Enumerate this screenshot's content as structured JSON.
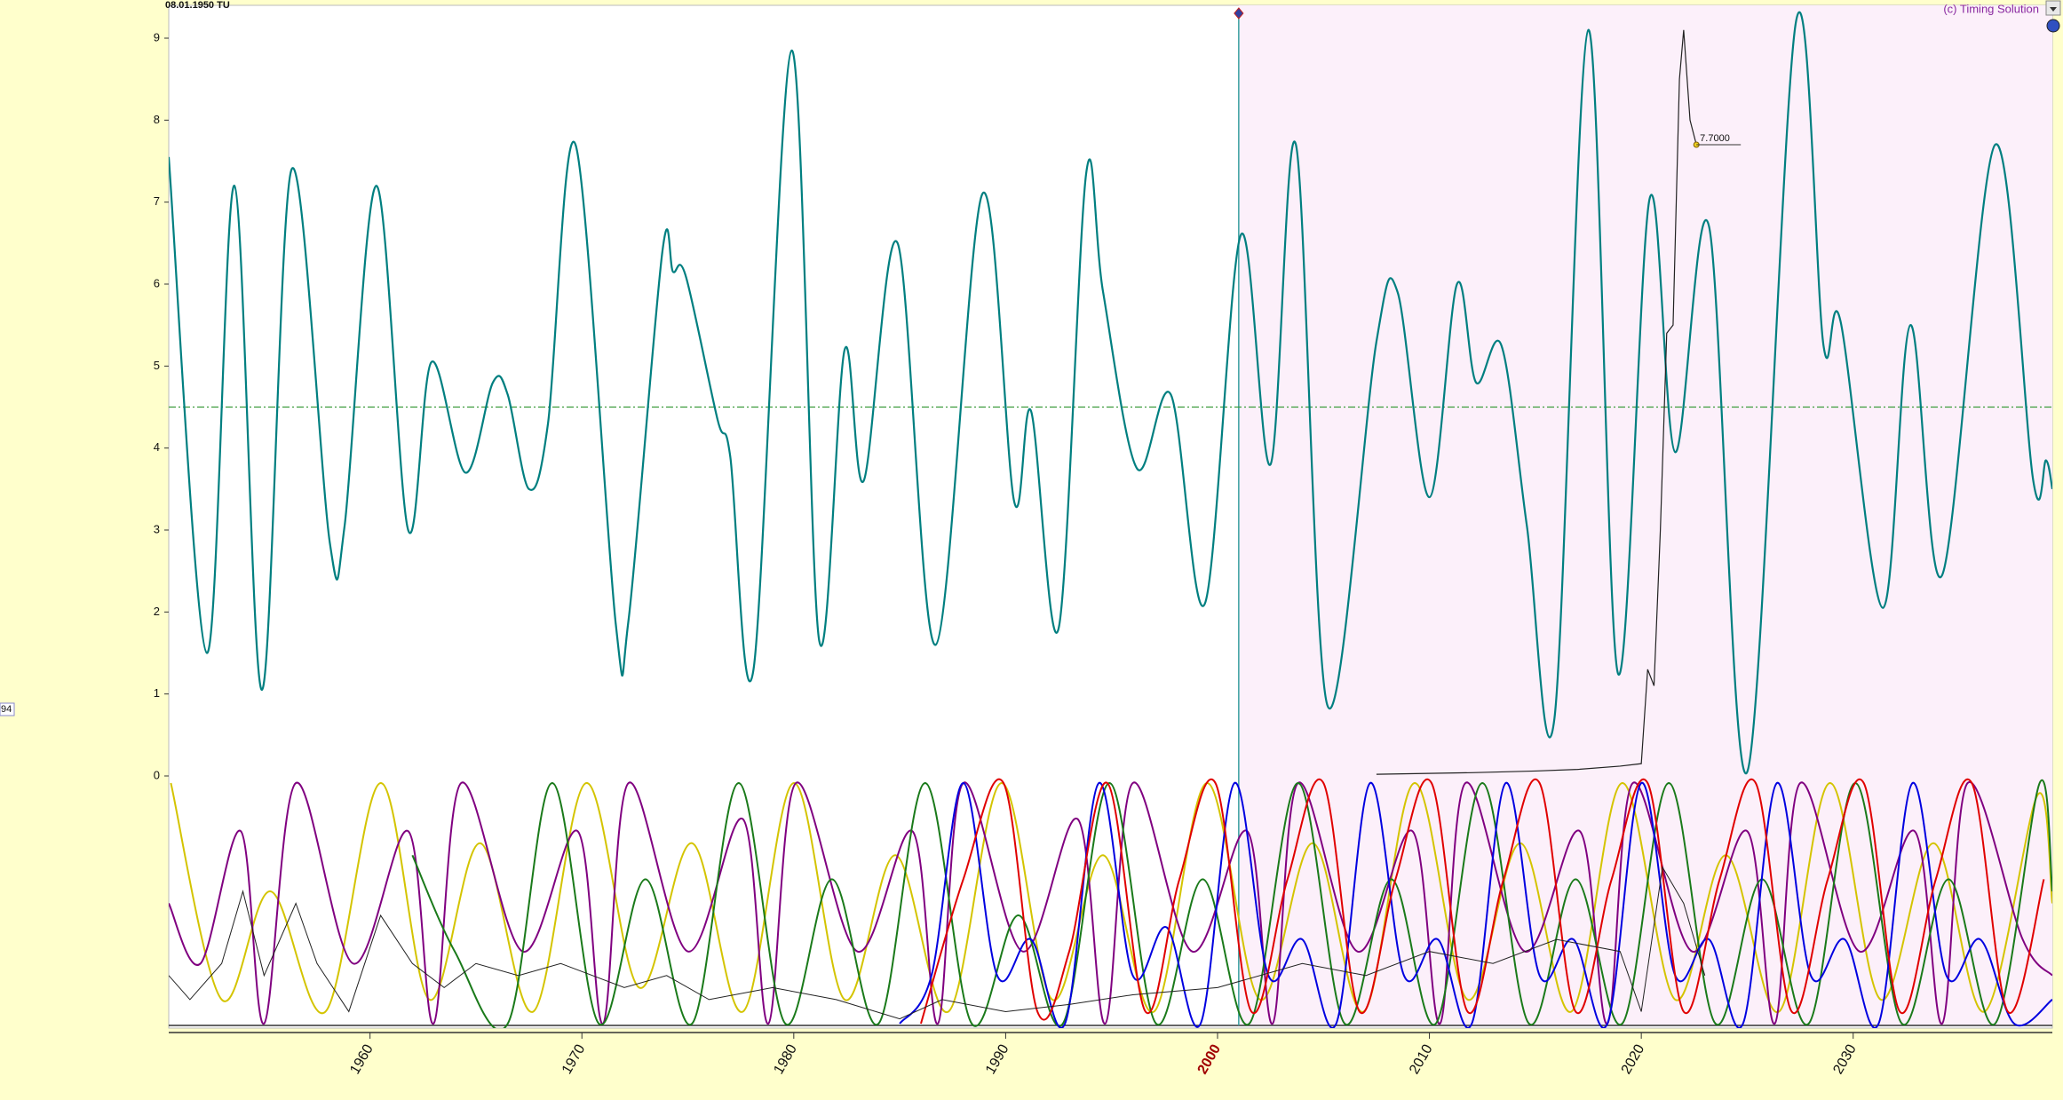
{
  "chart_data": [
    {
      "type": "line",
      "date_label": "08.01.1950 TU",
      "copyright": "(c) Timing Solution",
      "side_label": "94",
      "xlim": [
        1950.5,
        2039.4
      ],
      "ylim": [
        0,
        9
      ],
      "yticks": [
        0,
        1,
        2,
        3,
        4,
        5,
        6,
        7,
        8,
        9
      ],
      "ref_line": 4.5,
      "ref_color": "#3a9a3a",
      "cursor_x": 2001.0,
      "shade_color": "#fcf0fa",
      "series": [
        {
          "color": "#007f80",
          "smooth": true,
          "width": 2.2,
          "x": [
            1950.5,
            1952.3,
            1953.6,
            1954.9,
            1956.3,
            1958.1,
            1958.8,
            1960.3,
            1961.8,
            1962.9,
            1964.5,
            1965.8,
            1966.5,
            1967.5,
            1968.4,
            1969.7,
            1971.6,
            1972.2,
            1973.8,
            1974.3,
            1974.9,
            1976.4,
            1977.0,
            1978.1,
            1979.9,
            1981.2,
            1982.4,
            1983.3,
            1984.9,
            1986.7,
            1988.9,
            1990.4,
            1991.2,
            1992.5,
            1993.8,
            1994.6,
            1996.2,
            1997.8,
            1999.4,
            2001.1,
            2002.5,
            2003.7,
            2005.2,
            2007.5,
            2008.5,
            2010.0,
            2011.3,
            2012.2,
            2013.4,
            2014.6,
            2015.9,
            2017.5,
            2018.9,
            2020.4,
            2021.6,
            2023.2,
            2025.0,
            2027.3,
            2028.6,
            2029.4,
            2031.4,
            2032.7,
            2034.2,
            2036.7,
            2038.5,
            2039.1,
            2039.4
          ],
          "values": [
            7.55,
            1.5,
            7.2,
            1.05,
            7.4,
            2.85,
            3.05,
            7.2,
            3.0,
            5.05,
            3.7,
            4.8,
            4.65,
            3.5,
            4.3,
            7.7,
            1.85,
            1.9,
            6.4,
            6.15,
            6.1,
            4.35,
            3.9,
            1.3,
            8.85,
            1.65,
            5.2,
            3.6,
            6.5,
            1.6,
            7.1,
            3.35,
            4.45,
            1.8,
            7.35,
            5.9,
            3.75,
            4.65,
            2.1,
            6.6,
            3.8,
            7.7,
            0.85,
            5.3,
            5.9,
            3.4,
            6.0,
            4.8,
            5.25,
            3.05,
            0.7,
            9.1,
            1.25,
            7.05,
            3.95,
            6.7,
            0.05,
            9.2,
            5.25,
            5.55,
            2.05,
            5.5,
            2.45,
            7.7,
            3.6,
            3.85,
            3.5
          ]
        },
        {
          "color": "#222222",
          "smooth": false,
          "width": 1.2,
          "x": [
            2007.5,
            2012,
            2015,
            2017,
            2019,
            2020.0,
            2020.3,
            2020.6,
            2020.9,
            2021.2,
            2021.5,
            2021.8,
            2022.0,
            2022.3,
            2022.6
          ],
          "values": [
            0.02,
            0.04,
            0.06,
            0.08,
            0.12,
            0.15,
            1.3,
            1.1,
            3.0,
            5.4,
            5.5,
            8.5,
            9.1,
            8.0,
            7.7
          ]
        }
      ],
      "annotation": {
        "x": 2022.6,
        "value": 7.7,
        "label": "7.7000"
      }
    },
    {
      "type": "line",
      "xlim": [
        1950.5,
        2039.4
      ],
      "ylim": [
        0,
        1
      ],
      "xticks": [
        1960,
        1970,
        1980,
        1990,
        2000,
        2010,
        2020,
        2030
      ],
      "highlight_xtick": 2000,
      "highlight_color": "#a00000",
      "series": [
        {
          "color": "#d4c400",
          "smooth": true,
          "width": 2,
          "x": [
            1950.6,
            1953.0,
            1955.3,
            1957.9,
            1960.5,
            1962.8,
            1965.2,
            1967.7,
            1970.2,
            1972.7,
            1975.2,
            1977.6,
            1980.0,
            1982.4,
            1984.8,
            1987.3,
            1989.8,
            1992.2,
            1994.6,
            1997.0,
            1999.5,
            2002.0,
            2004.5,
            2006.9,
            2009.3,
            2011.8,
            2014.3,
            2016.7,
            2019.1,
            2021.6,
            2024.0,
            2026.5,
            2028.9,
            2031.3,
            2033.8,
            2036.2,
            2038.7,
            2039.4
          ],
          "values": [
            1,
            0.1,
            0.55,
            0.05,
            1,
            0.1,
            0.75,
            0.05,
            1,
            0.15,
            0.75,
            0.05,
            1,
            0.1,
            0.7,
            0.05,
            1,
            0.1,
            0.7,
            0.05,
            1,
            0.1,
            0.75,
            0.05,
            1,
            0.1,
            0.75,
            0.05,
            1,
            0.1,
            0.7,
            0.05,
            1,
            0.1,
            0.75,
            0.05,
            0.95,
            0.5
          ]
        },
        {
          "color": "#800080",
          "smooth": true,
          "width": 2,
          "x": [
            1950.5,
            1952.0,
            1953.9,
            1955.0,
            1956.5,
            1959.2,
            1961.8,
            1963.0,
            1964.3,
            1967.2,
            1969.8,
            1971.0,
            1972.2,
            1975.0,
            1977.6,
            1978.8,
            1980.1,
            1983.0,
            1985.6,
            1986.8,
            1988.0,
            1990.8,
            1993.4,
            1994.7,
            1996.0,
            1998.8,
            2001.4,
            2002.6,
            2003.8,
            2006.6,
            2009.2,
            2010.5,
            2011.7,
            2014.5,
            2017.1,
            2018.4,
            2019.6,
            2022.4,
            2025.0,
            2026.3,
            2027.5,
            2030.3,
            2032.9,
            2034.2,
            2035.4,
            2038.0,
            2039.4
          ],
          "values": [
            0.5,
            0.25,
            0.8,
            0.0,
            1,
            0.25,
            0.8,
            0.0,
            1,
            0.3,
            0.8,
            0.0,
            1,
            0.3,
            0.85,
            0.0,
            1,
            0.3,
            0.8,
            0.0,
            1,
            0.3,
            0.85,
            0.0,
            1,
            0.3,
            0.8,
            0.0,
            1,
            0.3,
            0.8,
            0.0,
            1,
            0.3,
            0.8,
            0.0,
            1,
            0.3,
            0.8,
            0.0,
            1,
            0.3,
            0.8,
            0.0,
            1,
            0.35,
            0.2
          ]
        },
        {
          "color": "#1a7a1a",
          "smooth": true,
          "width": 2,
          "x": [
            1962.0,
            1964.0,
            1966.5,
            1968.6,
            1970.8,
            1973.0,
            1975.2,
            1977.4,
            1979.6,
            1981.8,
            1984.0,
            1986.2,
            1988.4,
            1990.6,
            1992.7,
            1994.9,
            1997.1,
            1999.3,
            2001.5,
            2003.8,
            2006.0,
            2008.2,
            2010.3,
            2012.5,
            2014.7,
            2016.9,
            2019.1,
            2021.3,
            2023.5,
            2025.7,
            2027.9,
            2030.1,
            2032.3,
            2034.5,
            2036.7,
            2038.8,
            2039.4
          ],
          "values": [
            0.7,
            0.3,
            0.0,
            1,
            0.0,
            0.6,
            0.0,
            1,
            0.0,
            0.6,
            0.0,
            1,
            0.0,
            0.45,
            0.0,
            1,
            0.0,
            0.6,
            0.0,
            1,
            0.0,
            0.6,
            0.0,
            1,
            0.0,
            0.6,
            0.0,
            1,
            0.0,
            0.6,
            0.0,
            1,
            0.0,
            0.6,
            0.0,
            1,
            0.55
          ]
        },
        {
          "color": "#0000e0",
          "smooth": true,
          "width": 2,
          "x": [
            1985.0,
            1986.5,
            1988.0,
            1989.6,
            1991.2,
            1992.8,
            1994.4,
            1996.0,
            1997.6,
            1999.2,
            2000.8,
            2002.4,
            2004.0,
            2005.6,
            2007.2,
            2008.8,
            2010.4,
            2012.0,
            2013.6,
            2015.2,
            2016.8,
            2018.4,
            2020.0,
            2021.6,
            2023.2,
            2024.8,
            2026.4,
            2028.0,
            2029.6,
            2031.2,
            2032.8,
            2034.4,
            2036.0,
            2037.6,
            2039.4
          ],
          "values": [
            0.0,
            0.2,
            1,
            0.2,
            0.35,
            0.0,
            1,
            0.2,
            0.4,
            0.0,
            1,
            0.2,
            0.35,
            0.0,
            1,
            0.2,
            0.35,
            0.0,
            1,
            0.2,
            0.35,
            0.0,
            1,
            0.2,
            0.35,
            0.0,
            1,
            0.2,
            0.35,
            0.0,
            1,
            0.2,
            0.35,
            0.0,
            0.1
          ]
        },
        {
          "color": "#e00000",
          "smooth": true,
          "width": 2,
          "x": [
            1986.0,
            1988.0,
            1989.9,
            1991.5,
            1993.0,
            1994.8,
            1996.6,
            1998.2,
            1999.9,
            2001.6,
            2003.3,
            2005.0,
            2006.7,
            2008.4,
            2010.1,
            2011.8,
            2013.5,
            2015.2,
            2016.9,
            2018.6,
            2020.3,
            2022.0,
            2023.7,
            2025.4,
            2027.1,
            2028.8,
            2030.5,
            2032.2,
            2033.9,
            2035.6,
            2037.3,
            2039.0
          ],
          "values": [
            0.0,
            0.6,
            1,
            0.05,
            0.3,
            1,
            0.05,
            0.6,
            1,
            0.05,
            0.6,
            1,
            0.05,
            0.6,
            1,
            0.05,
            0.6,
            1,
            0.05,
            0.6,
            1,
            0.05,
            0.6,
            1,
            0.05,
            0.6,
            1,
            0.05,
            0.6,
            1,
            0.05,
            0.6
          ]
        },
        {
          "color": "#222222",
          "smooth": false,
          "width": 1,
          "x": [
            1950.5,
            1951.5,
            1953,
            1954,
            1955,
            1956.5,
            1957.5,
            1959,
            1960.5,
            1962,
            1963.5,
            1965,
            1967,
            1969,
            1972,
            1974,
            1976,
            1979,
            1982,
            1985,
            1987,
            1990,
            1993,
            1996,
            2000,
            2004,
            2007,
            2010,
            2013,
            2016,
            2019,
            2020,
            2021,
            2022,
            2023
          ],
          "values": [
            0.2,
            0.1,
            0.25,
            0.55,
            0.2,
            0.5,
            0.25,
            0.05,
            0.45,
            0.25,
            0.15,
            0.25,
            0.2,
            0.25,
            0.15,
            0.2,
            0.1,
            0.15,
            0.1,
            0.02,
            0.1,
            0.05,
            0.08,
            0.12,
            0.15,
            0.25,
            0.2,
            0.3,
            0.25,
            0.35,
            0.3,
            0.05,
            0.65,
            0.5,
            0.2
          ]
        }
      ]
    }
  ]
}
